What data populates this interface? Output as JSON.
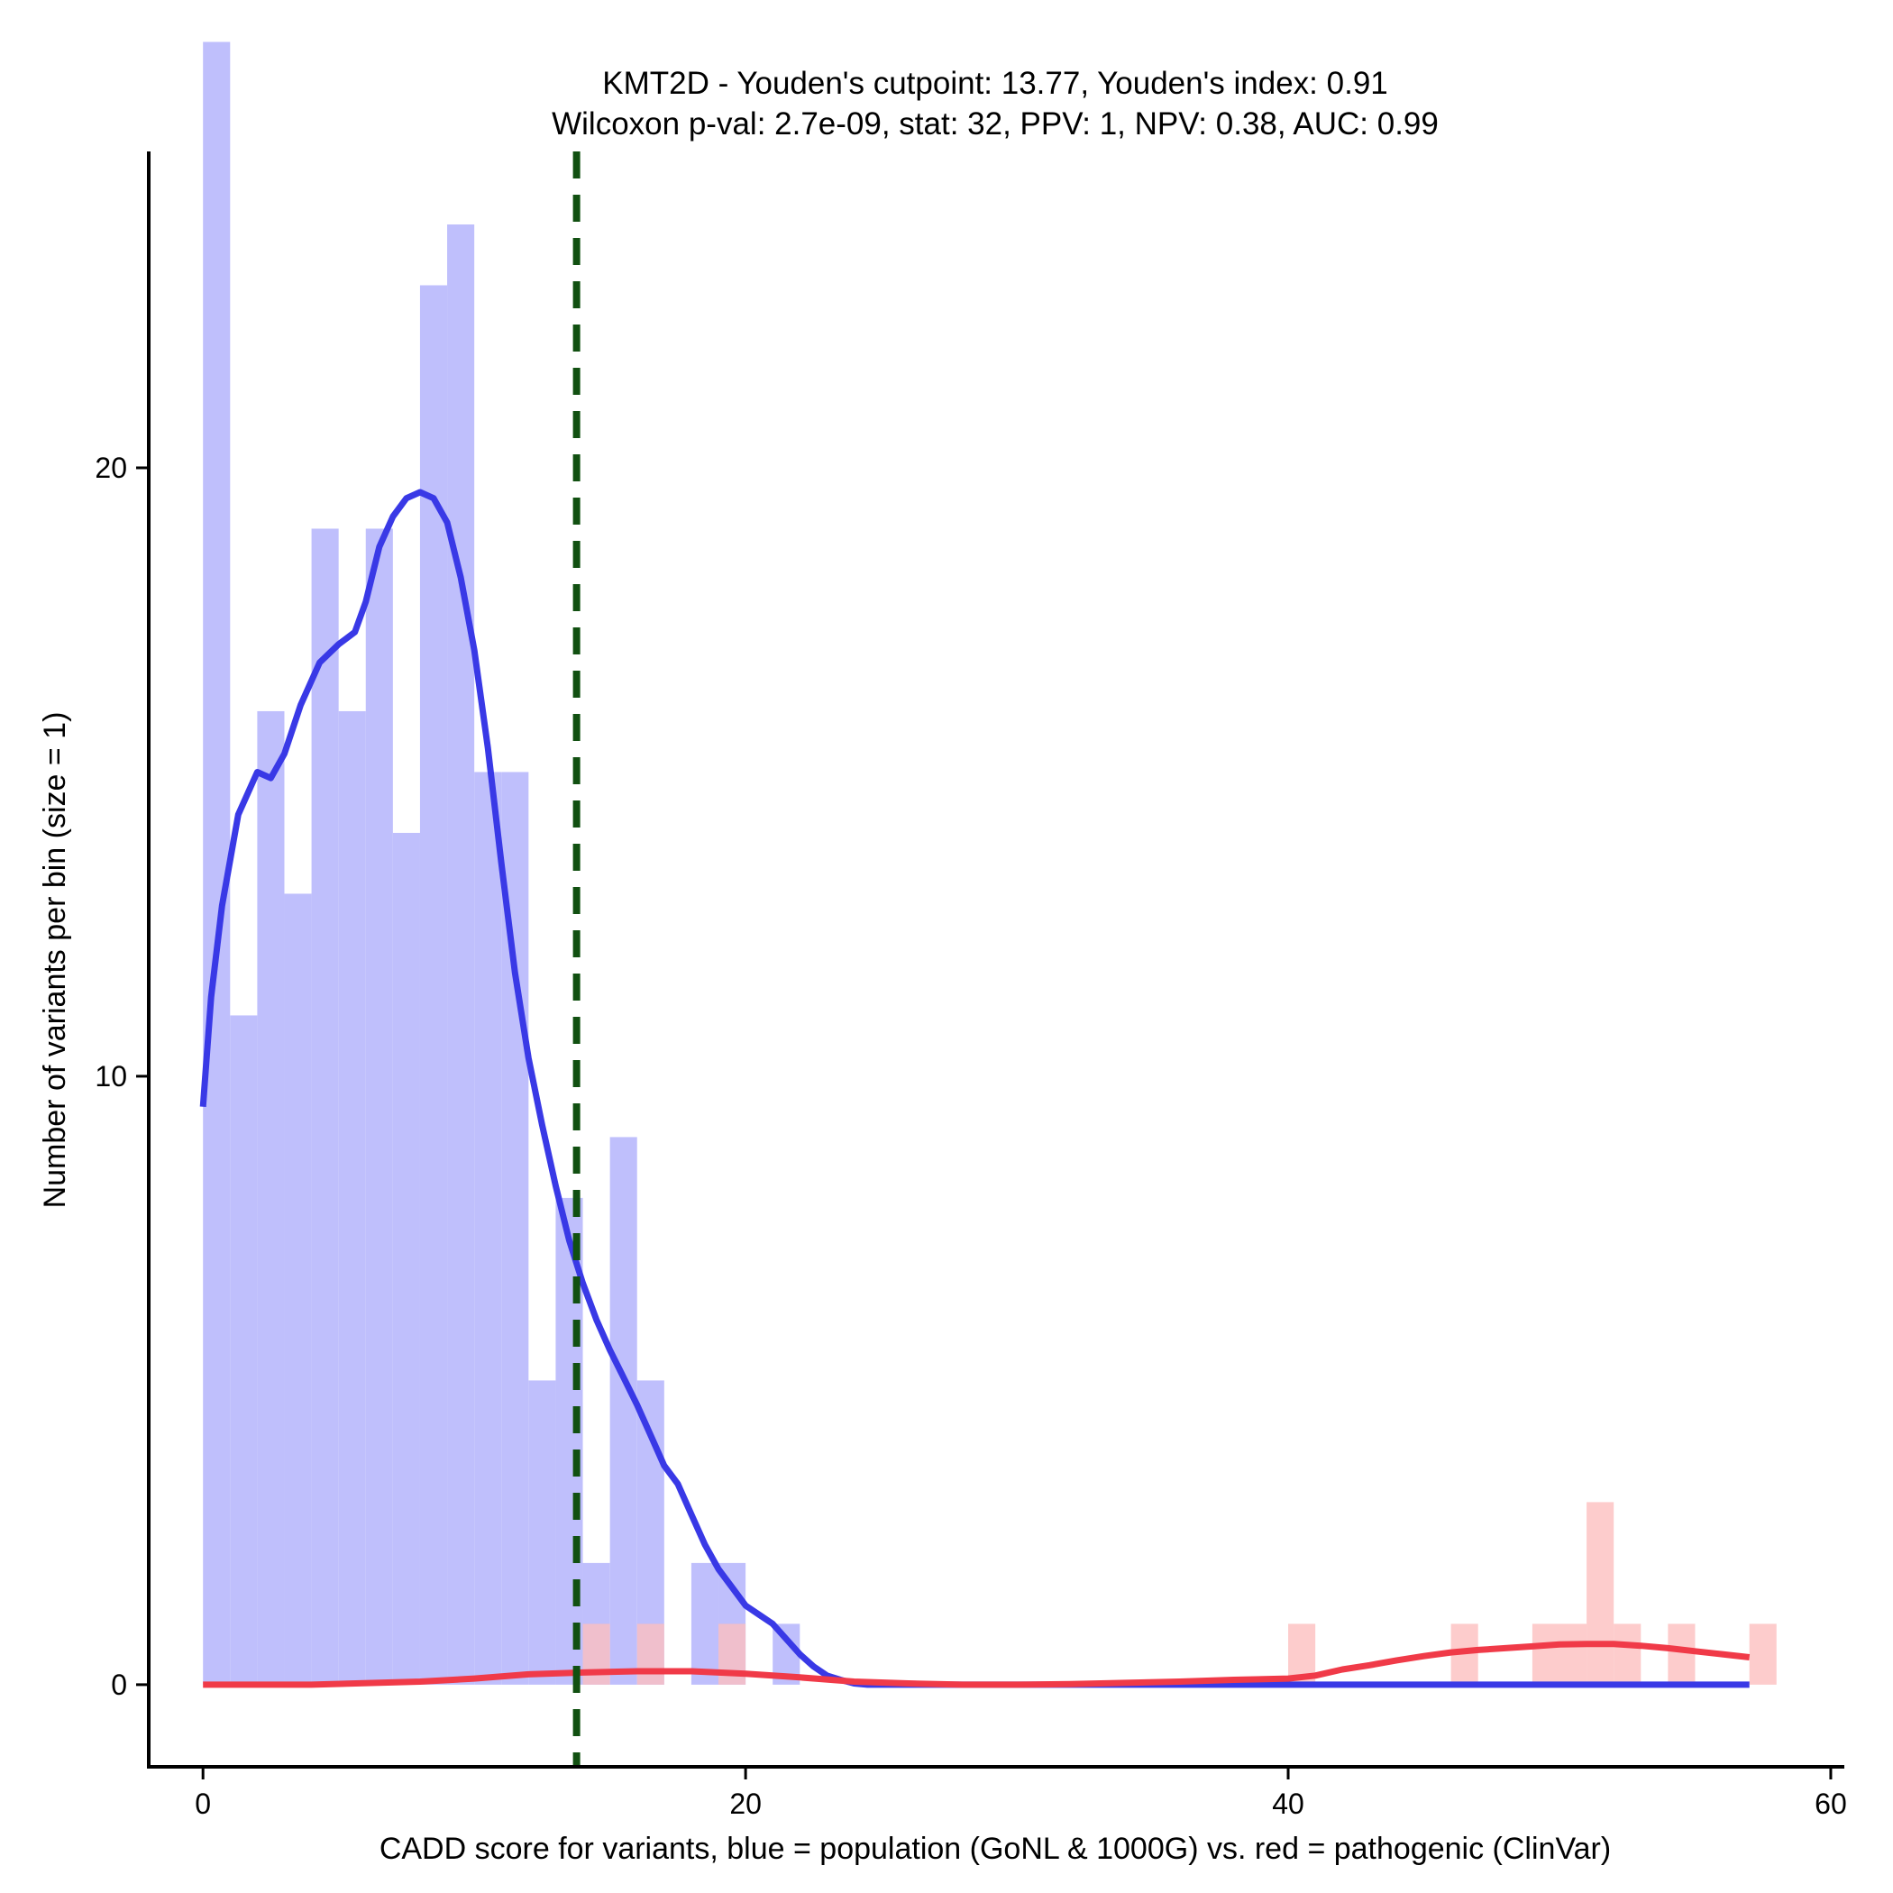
{
  "chart_data": {
    "type": "bar",
    "title_line1": "KMT2D - Youden's cutpoint: 13.77, Youden's index: 0.91",
    "title_line2": "Wilcoxon p-val: 2.7e-09, stat: 32, PPV: 1, NPV: 0.38, AUC: 0.99",
    "xlabel": "CADD score for variants, blue = population (GoNL & 1000G) vs. red = pathogenic (ClinVar)",
    "ylabel": "Number of variants per bin (size = 1)",
    "xlim": [
      -2,
      60.5
    ],
    "ylim": [
      -1.35,
      25.2
    ],
    "x_ticks": [
      "0",
      "20",
      "40",
      "60"
    ],
    "y_ticks": [
      "0",
      "10",
      "20"
    ],
    "bin_size": 1,
    "cutpoint": 13.77,
    "colors": {
      "population_bar": "#bfbffc",
      "pathogenic_bar": "#fcbfbf",
      "population_line": "#3939e6",
      "pathogenic_line": "#f03a48",
      "cutpoint_line": "#115011"
    },
    "series": [
      {
        "name": "population (GoNL & 1000G)",
        "bins": [
          {
            "x": 0,
            "count": 27
          },
          {
            "x": 1,
            "count": 11
          },
          {
            "x": 2,
            "count": 16
          },
          {
            "x": 3,
            "count": 13
          },
          {
            "x": 4,
            "count": 19
          },
          {
            "x": 5,
            "count": 16
          },
          {
            "x": 6,
            "count": 19
          },
          {
            "x": 7,
            "count": 14
          },
          {
            "x": 8,
            "count": 23
          },
          {
            "x": 9,
            "count": 24
          },
          {
            "x": 10,
            "count": 15
          },
          {
            "x": 11,
            "count": 15
          },
          {
            "x": 12,
            "count": 5
          },
          {
            "x": 13,
            "count": 8
          },
          {
            "x": 14,
            "count": 2
          },
          {
            "x": 15,
            "count": 9
          },
          {
            "x": 16,
            "count": 5
          },
          {
            "x": 18,
            "count": 2
          },
          {
            "x": 19,
            "count": 2
          },
          {
            "x": 21,
            "count": 1
          }
        ],
        "density": [
          [
            0,
            9.5
          ],
          [
            0.3,
            11.3
          ],
          [
            0.7,
            12.8
          ],
          [
            1.3,
            14.3
          ],
          [
            2,
            15
          ],
          [
            2.5,
            14.9
          ],
          [
            3,
            15.3
          ],
          [
            3.6,
            16.1
          ],
          [
            4.3,
            16.8
          ],
          [
            5,
            17.1
          ],
          [
            5.6,
            17.3
          ],
          [
            6,
            17.8
          ],
          [
            6.5,
            18.7
          ],
          [
            7,
            19.2
          ],
          [
            7.5,
            19.5
          ],
          [
            8,
            19.6
          ],
          [
            8.5,
            19.5
          ],
          [
            9,
            19.1
          ],
          [
            9.5,
            18.2
          ],
          [
            10,
            17
          ],
          [
            10.5,
            15.4
          ],
          [
            11,
            13.5
          ],
          [
            11.5,
            11.7
          ],
          [
            12,
            10.3
          ],
          [
            12.5,
            9.2
          ],
          [
            13,
            8.2
          ],
          [
            13.5,
            7.3
          ],
          [
            14,
            6.6
          ],
          [
            14.5,
            6
          ],
          [
            15,
            5.5
          ],
          [
            15.5,
            5.05
          ],
          [
            16,
            4.6
          ],
          [
            16.5,
            4.1
          ],
          [
            17,
            3.6
          ],
          [
            17.5,
            3.3
          ],
          [
            18,
            2.8
          ],
          [
            18.5,
            2.3
          ],
          [
            19,
            1.9
          ],
          [
            19.5,
            1.6
          ],
          [
            20,
            1.3
          ],
          [
            20.5,
            1.15
          ],
          [
            21,
            1
          ],
          [
            21.5,
            0.75
          ],
          [
            22,
            0.5
          ],
          [
            22.5,
            0.3
          ],
          [
            23,
            0.15
          ],
          [
            23.5,
            0.08
          ],
          [
            24,
            0.02
          ],
          [
            24.5,
            0
          ],
          [
            57,
            0
          ]
        ]
      },
      {
        "name": "pathogenic (ClinVar)",
        "bins": [
          {
            "x": 14,
            "count": 1
          },
          {
            "x": 16,
            "count": 1
          },
          {
            "x": 19,
            "count": 1
          },
          {
            "x": 40,
            "count": 1
          },
          {
            "x": 46,
            "count": 1
          },
          {
            "x": 49,
            "count": 1
          },
          {
            "x": 50,
            "count": 1
          },
          {
            "x": 51,
            "count": 3
          },
          {
            "x": 52,
            "count": 1
          },
          {
            "x": 54,
            "count": 1
          },
          {
            "x": 57,
            "count": 1
          }
        ],
        "density": [
          [
            0,
            0
          ],
          [
            4,
            0
          ],
          [
            8,
            0.05
          ],
          [
            10,
            0.1
          ],
          [
            12,
            0.17
          ],
          [
            14,
            0.2
          ],
          [
            16,
            0.22
          ],
          [
            18,
            0.22
          ],
          [
            20,
            0.18
          ],
          [
            22,
            0.12
          ],
          [
            24,
            0.05
          ],
          [
            26,
            0.02
          ],
          [
            28,
            0
          ],
          [
            30,
            0
          ],
          [
            32,
            0.01
          ],
          [
            34,
            0.03
          ],
          [
            36,
            0.05
          ],
          [
            38,
            0.08
          ],
          [
            40,
            0.1
          ],
          [
            41,
            0.15
          ],
          [
            42,
            0.25
          ],
          [
            43,
            0.32
          ],
          [
            44,
            0.4
          ],
          [
            45,
            0.47
          ],
          [
            46,
            0.53
          ],
          [
            47,
            0.57
          ],
          [
            48,
            0.6
          ],
          [
            49,
            0.63
          ],
          [
            50,
            0.66
          ],
          [
            51,
            0.67
          ],
          [
            52,
            0.67
          ],
          [
            53,
            0.64
          ],
          [
            54,
            0.6
          ],
          [
            55,
            0.55
          ],
          [
            56,
            0.5
          ],
          [
            57,
            0.45
          ]
        ]
      }
    ]
  }
}
